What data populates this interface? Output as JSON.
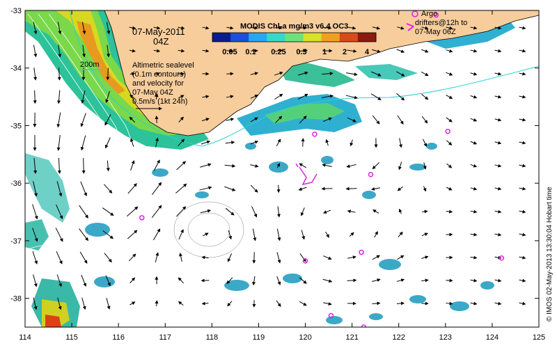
{
  "map": {
    "date_title": "07-May-2011",
    "time_title": "04Z",
    "colorbar_title": "MODIS Chl-a mg/m3 v6.4 OC3",
    "colorbar_ticks": [
      "0.05",
      "0.1",
      "0.25",
      "0.5",
      "1",
      "2",
      "4"
    ],
    "colorbar_colors": [
      "#0b1a8c",
      "#1f4fd8",
      "#2aa6f0",
      "#38d8c8",
      "#6fe07a",
      "#d8e02a",
      "#f0a020",
      "#d84a1a",
      "#8c1a0e"
    ],
    "isobath_label": "200m",
    "altimetry_note": [
      "Altimetric sealevel",
      "(0.1m contours)",
      "and velocity for",
      "07-May 04Z",
      "0.5m/s (1kt 24h)"
    ],
    "argo_legend": [
      "Argo",
      "drifters@12h to",
      "07-May 06Z"
    ],
    "y_ticks": [
      "-33",
      "-34",
      "-35",
      "-36",
      "-37",
      "-38"
    ],
    "x_ticks": [
      "114",
      "115",
      "116",
      "117",
      "118",
      "119",
      "120",
      "121",
      "122",
      "123",
      "124",
      "125"
    ],
    "credit": "© IMOS 02-May-2013 13:30:04 Hobart time",
    "colors": {
      "land": "#f7cd9c",
      "argo": "#e020e0",
      "isobath": "#30d0d0",
      "frame": "#000000"
    },
    "floats": [
      {
        "lon": 120.2,
        "lat": -35.15
      },
      {
        "lon": 121.4,
        "lat": -35.85
      },
      {
        "lon": 123.05,
        "lat": -35.1
      },
      {
        "lon": 116.5,
        "lat": -36.6
      },
      {
        "lon": 120.0,
        "lat": -37.35
      },
      {
        "lon": 121.2,
        "lat": -37.2
      },
      {
        "lon": 124.2,
        "lat": -37.3
      },
      {
        "lon": 120.55,
        "lat": -38.3
      },
      {
        "lon": 121.25,
        "lat": -38.5
      },
      {
        "lon": 122.8,
        "lat": -33.08
      }
    ]
  }
}
